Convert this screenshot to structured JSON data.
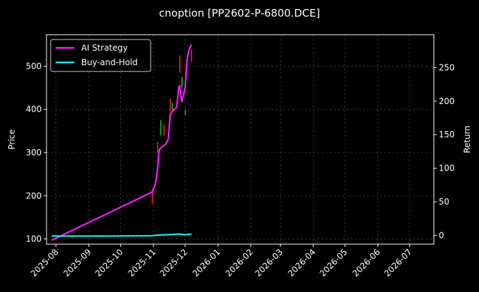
{
  "chart_data": {
    "type": "line",
    "title": "cnoption [PP2602-P-6800.DCE]",
    "ylabel_left": "Price",
    "ylabel_right": "Return",
    "grid": true,
    "legend_placement": "top-left",
    "x_ticks": [
      "2025-08",
      "2025-09",
      "2025-10",
      "2025-11",
      "2025-12",
      "2026-01",
      "2026-02",
      "2026-03",
      "2026-04",
      "2026-05",
      "2026-06",
      "2026-07"
    ],
    "x_range": [
      "2025-07-23",
      "2026-07-24"
    ],
    "y_left_ticks": [
      100,
      200,
      300,
      400,
      500
    ],
    "y_left_range": [
      88,
      573
    ],
    "y_right_ticks": [
      0,
      50,
      100,
      150,
      200,
      250
    ],
    "y_right_range": [
      -13,
      299
    ],
    "series": [
      {
        "name": "AI Strategy",
        "axis": "left",
        "color": "#ff19ff",
        "points": [
          [
            "2025-07-28",
            97
          ],
          [
            "2025-10-31",
            209
          ],
          [
            "2025-11-01",
            217
          ],
          [
            "2025-11-02",
            220
          ],
          [
            "2025-11-03",
            228
          ],
          [
            "2025-11-05",
            262
          ],
          [
            "2025-11-06",
            300
          ],
          [
            "2025-11-07",
            308
          ],
          [
            "2025-11-10",
            315
          ],
          [
            "2025-11-12",
            318
          ],
          [
            "2025-11-15",
            330
          ],
          [
            "2025-11-17",
            390
          ],
          [
            "2025-11-20",
            398
          ],
          [
            "2025-11-23",
            405
          ],
          [
            "2025-11-25",
            452
          ],
          [
            "2025-11-26",
            455
          ],
          [
            "2025-11-27",
            430
          ],
          [
            "2025-11-28",
            418
          ],
          [
            "2025-11-29",
            430
          ],
          [
            "2025-12-01",
            450
          ],
          [
            "2025-12-03",
            520
          ],
          [
            "2025-12-05",
            540
          ],
          [
            "2025-12-07",
            550
          ]
        ]
      },
      {
        "name": "Buy-and-Hold",
        "axis": "right",
        "color": "#19e6ea",
        "points": [
          [
            "2025-07-28",
            -1
          ],
          [
            "2025-09-15",
            -1
          ],
          [
            "2025-10-31",
            -0.5
          ],
          [
            "2025-11-05",
            0.5
          ],
          [
            "2025-11-15",
            1
          ],
          [
            "2025-11-25",
            2
          ],
          [
            "2025-12-01",
            1
          ],
          [
            "2025-12-07",
            2
          ]
        ]
      }
    ],
    "candles": [
      {
        "date": "2025-10-31",
        "low": 182,
        "high": 215,
        "color": "#ff2020"
      },
      {
        "date": "2025-11-05",
        "low": 300,
        "high": 325,
        "color": "#ff2020"
      },
      {
        "date": "2025-11-08",
        "low": 340,
        "high": 375,
        "color": "#20c020"
      },
      {
        "date": "2025-11-11",
        "low": 340,
        "high": 365,
        "color": "#ff2020"
      },
      {
        "date": "2025-11-17",
        "low": 395,
        "high": 425,
        "color": "#ff2020"
      },
      {
        "date": "2025-11-19",
        "low": 395,
        "high": 415,
        "color": "#20c020"
      },
      {
        "date": "2025-11-26",
        "low": 485,
        "high": 525,
        "color": "#ff2020"
      },
      {
        "date": "2025-11-28",
        "low": 450,
        "high": 475,
        "color": "#20c020"
      },
      {
        "date": "2025-12-01",
        "low": 388,
        "high": 398,
        "color": "#20c020"
      },
      {
        "date": "2025-12-07",
        "low": 510,
        "high": 540,
        "color": "#ff2020"
      }
    ]
  }
}
